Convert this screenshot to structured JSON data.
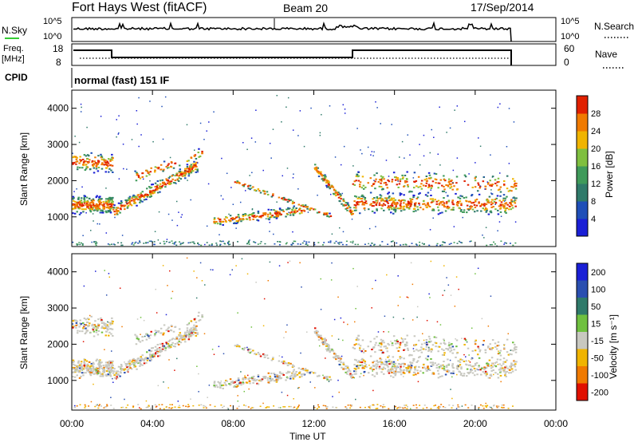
{
  "header": {
    "station": "Fort Hays West (fitACF)",
    "beam": "Beam 20",
    "date": "17/Sep/2014"
  },
  "top_panels": {
    "nsky_label": "N.Sky",
    "nsky_ticks": [
      "10^5",
      "10^0"
    ],
    "nsearch_label": "N.Search",
    "freq_label_1": "Freq.",
    "freq_label_2": "[MHz]",
    "freq_ticks": [
      "18",
      "8"
    ],
    "nave_ticks": [
      "60",
      "0"
    ],
    "nave_label": "Nave",
    "cpid_label": "CPID",
    "cpid_text": "normal (fast) 151 IF"
  },
  "colors": {
    "power": [
      "#1a1fd6",
      "#1f4fb8",
      "#2f7a6a",
      "#3f9a5a",
      "#7fbf3f",
      "#f0b400",
      "#f07a00",
      "#e02000"
    ],
    "velocity": [
      "#1a1fd6",
      "#2a4fb0",
      "#2f7a6a",
      "#6fc03f",
      "#c8c8c0",
      "#f0b400",
      "#f07a00",
      "#e01000"
    ]
  },
  "chart_data": [
    {
      "type": "heatmap",
      "ylabel": "Slant Range [km]",
      "xlabel": "Time UT",
      "x_ticks": [
        "00:00",
        "04:00",
        "08:00",
        "12:00",
        "16:00",
        "20:00",
        "00:00"
      ],
      "y_ticks": [
        "1000",
        "2000",
        "3000",
        "4000"
      ],
      "xlim": [
        0,
        24
      ],
      "ylim": [
        180,
        4500
      ],
      "colorbar": {
        "label": "Power [dB]",
        "ticks": [
          "4",
          "8",
          "12",
          "16",
          "20",
          "24",
          "28"
        ]
      }
    },
    {
      "type": "heatmap",
      "ylabel": "Slant Range [km]",
      "xlabel": "Time UT",
      "x_ticks": [
        "00:00",
        "04:00",
        "08:00",
        "12:00",
        "16:00",
        "20:00",
        "00:00"
      ],
      "y_ticks": [
        "1000",
        "2000",
        "3000",
        "4000"
      ],
      "xlim": [
        0,
        24
      ],
      "ylim": [
        180,
        4500
      ],
      "colorbar": {
        "label": "Velocity [m s⁻¹]",
        "ticks": [
          "200",
          "100",
          "50",
          "15",
          "-15",
          "-50",
          "-100",
          "-200"
        ]
      }
    }
  ]
}
